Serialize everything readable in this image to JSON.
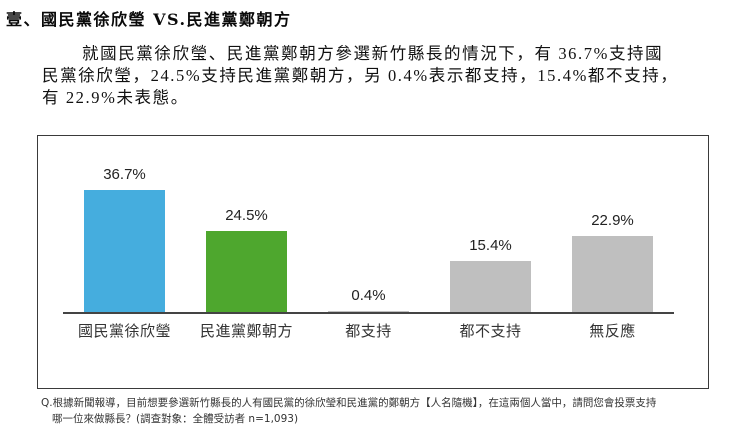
{
  "section": {
    "title": "壹、國民黨徐欣瑩 VS.民進黨鄭朝方"
  },
  "body": {
    "lines": [
      "就國民黨徐欣瑩、民進黨鄭朝方參選新竹縣長的情況下，有 36.7%支持國",
      "民黨徐欣瑩，24.5%支持民進黨鄭朝方，另 0.4%表示都支持，15.4%都不支持，",
      "有 22.9%未表態。"
    ]
  },
  "chart": {
    "bars": [
      {
        "label": "國民黨徐欣瑩",
        "value_label": "36.7%",
        "color": "#45ADDE"
      },
      {
        "label": "民進黨鄭朝方",
        "value_label": "24.5%",
        "color": "#4EA72E"
      },
      {
        "label": "都支持",
        "value_label": "0.4%",
        "color": "#BFBFBF"
      },
      {
        "label": "都不支持",
        "value_label": "15.4%",
        "color": "#BFBFBF"
      },
      {
        "label": "無反應",
        "value_label": "22.9%",
        "color": "#BFBFBF"
      }
    ]
  },
  "footnote": {
    "lines": [
      "Q.根據新聞報導，目前想要參選新竹縣長的人有國民黨的徐欣瑩和民進黨的鄭朝方【人名隨機】，在這兩個人當中，請問您會投票支持",
      "哪一位來做縣長？(調查對象：全體受訪者 n=1,093)"
    ]
  },
  "chart_data": {
    "type": "bar",
    "title": "",
    "categories": [
      "國民黨徐欣瑩",
      "民進黨鄭朝方",
      "都支持",
      "都不支持",
      "無反應"
    ],
    "values": [
      36.7,
      24.5,
      0.4,
      15.4,
      22.9
    ],
    "value_labels": [
      "36.7%",
      "24.5%",
      "0.4%",
      "15.4%",
      "22.9%"
    ],
    "colors": [
      "#45ADDE",
      "#4EA72E",
      "#BFBFBF",
      "#BFBFBF",
      "#BFBFBF"
    ],
    "xlabel": "",
    "ylabel": "",
    "ylim": [
      0,
      40
    ],
    "grid": false,
    "legend": "none",
    "unit": "%",
    "sample_size": "n=1,093"
  }
}
